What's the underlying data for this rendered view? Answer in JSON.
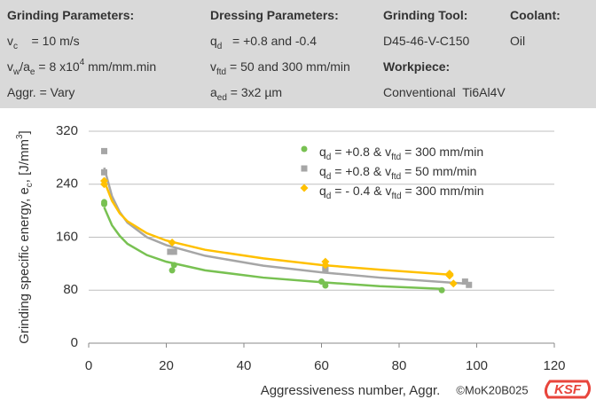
{
  "header": {
    "columns": [
      {
        "lines": [
          [
            "Grinding Parameters:"
          ],
          [
            "v",
            {
              "sub": "c"
            },
            "    = 10 m/s"
          ],
          [
            "v",
            {
              "sub": "w"
            },
            "/a",
            {
              "sub": "e"
            },
            " = 8 x10",
            {
              "sup": "4"
            },
            " mm/mm.min"
          ],
          [
            "Aggr. = Vary"
          ]
        ],
        "bold": [
          0
        ]
      },
      {
        "lines": [
          [
            "Dressing Parameters:"
          ],
          [
            "q",
            {
              "sub": "d"
            },
            "   = +0.8 and -0.4"
          ],
          [
            "v",
            {
              "sub": "ftd"
            },
            " = 50 and 300 mm/min"
          ],
          [
            "a",
            {
              "sub": "ed"
            },
            " = 3x2 µm"
          ]
        ],
        "bold": [
          0
        ]
      },
      {
        "lines": [
          [
            "Grinding Tool:"
          ],
          [
            "D45-46-V-C150"
          ],
          [
            "Workpiece:"
          ],
          [
            "Conventional  Ti6Al4V"
          ]
        ],
        "bold": [
          0,
          2
        ]
      },
      {
        "lines": [
          [
            "Coolant:"
          ],
          [
            "Oil"
          ]
        ],
        "bold": [
          0
        ]
      }
    ]
  },
  "chart_data": {
    "type": "scatter",
    "x_label": [
      "Aggressiveness number, Aggr."
    ],
    "y_label": [
      "Grinding specific energy, e",
      {
        "sub": "c"
      },
      ", [J/mm",
      {
        "sup": "3"
      },
      "]"
    ],
    "xlim": [
      0,
      120
    ],
    "xticks": [
      0,
      20,
      40,
      60,
      80,
      100,
      120
    ],
    "ylim": [
      0,
      320
    ],
    "yticks": [
      0,
      80,
      160,
      240,
      320
    ],
    "grid": true,
    "series": [
      {
        "name": [
          "q",
          {
            "sub": "d"
          },
          " = +0.8 & v",
          {
            "sub": "ftd"
          },
          " = 300 mm/min"
        ],
        "color": "#78c152",
        "marker": "circle",
        "x": [
          4,
          4,
          21.5,
          22,
          60,
          61,
          91
        ],
        "values": [
          210,
          213,
          110,
          118,
          93,
          87,
          80
        ],
        "trend_x": [
          4,
          6,
          8,
          10,
          15,
          20,
          30,
          45,
          60,
          75,
          91
        ],
        "trend_values": [
          205,
          178,
          162,
          150,
          133,
          123,
          110,
          99,
          92,
          86,
          82
        ]
      },
      {
        "name": [
          "q",
          {
            "sub": "d"
          },
          " = +0.8 & v",
          {
            "sub": "ftd"
          },
          " = 50 mm/min"
        ],
        "color": "#a6a6a6",
        "marker": "square",
        "x": [
          4,
          4,
          21,
          22,
          61,
          61,
          97,
          98
        ],
        "values": [
          290,
          258,
          138,
          138,
          110,
          113,
          93,
          88
        ],
        "trend_x": [
          4,
          6,
          8,
          10,
          15,
          20,
          30,
          45,
          60,
          75,
          97
        ],
        "trend_values": [
          265,
          222,
          198,
          182,
          160,
          148,
          132,
          117,
          107,
          99,
          90
        ]
      },
      {
        "name": [
          "q",
          {
            "sub": "d"
          },
          " = - 0.4 & v",
          {
            "sub": "ftd"
          },
          " = 300 mm/min"
        ],
        "color": "#ffc000",
        "marker": "diamond",
        "x": [
          4,
          4,
          21.5,
          61,
          61,
          93,
          93,
          94
        ],
        "values": [
          240,
          245,
          152,
          118,
          123,
          105,
          102,
          90
        ],
        "trend_x": [
          4,
          6,
          8,
          10,
          15,
          20,
          30,
          45,
          60,
          75,
          94
        ],
        "trend_values": [
          245,
          215,
          196,
          184,
          166,
          155,
          141,
          128,
          118,
          111,
          103
        ]
      }
    ],
    "legend": "upper right",
    "footer": "©MoK20B025",
    "logo": "KSF"
  }
}
